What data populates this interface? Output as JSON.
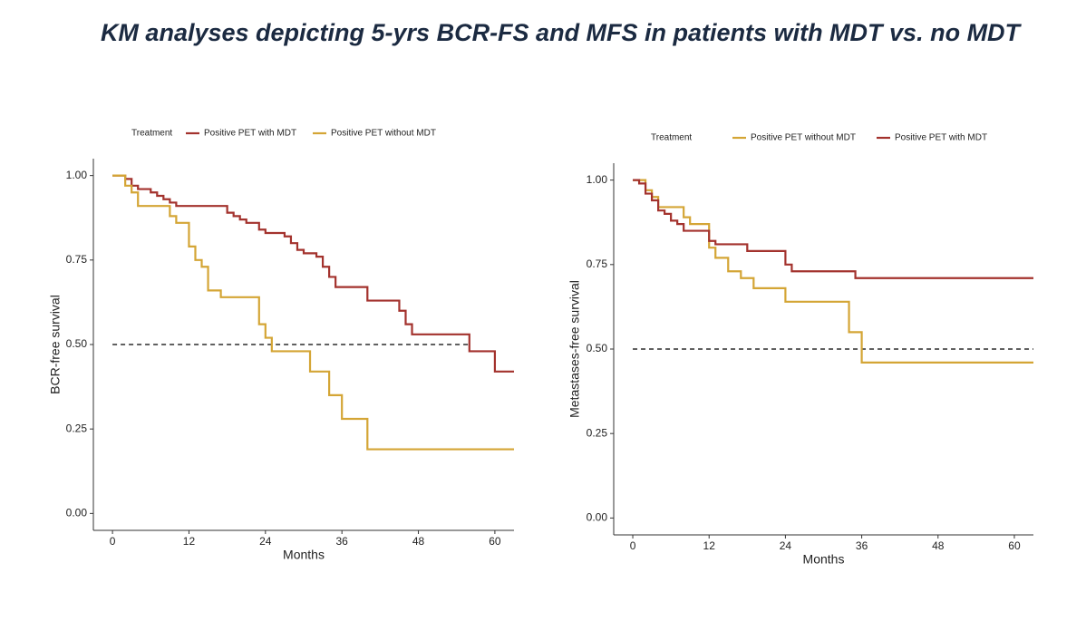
{
  "title": "KM analyses depicting 5-yrs BCR-FS and MFS in patients with MDT vs. no MDT",
  "chart_data": [
    {
      "type": "step",
      "x_label": "Months",
      "y_label": "BCR-free survival",
      "legend_title": "Treatment",
      "xlim": [
        -3,
        63
      ],
      "ylim": [
        -0.05,
        1.05
      ],
      "xticks": [
        0,
        12,
        24,
        36,
        48,
        60
      ],
      "yticks": [
        {
          "value": 0,
          "label": "0.00"
        },
        {
          "value": 0.25,
          "label": "0.25"
        },
        {
          "value": 0.5,
          "label": "0.50"
        },
        {
          "value": 0.75,
          "label": "0.75"
        },
        {
          "value": 1,
          "label": "1.00"
        }
      ],
      "reference_line": {
        "y": 0.5,
        "x": [
          0,
          56
        ]
      },
      "series": [
        {
          "name": "Positive PET with MDT",
          "color": "#a3322d",
          "x": [
            0,
            2,
            3,
            4,
            6,
            7,
            8,
            9,
            10,
            18,
            19,
            20,
            21,
            23,
            24,
            27,
            28,
            29,
            30,
            32,
            33,
            34,
            35,
            40,
            45,
            46,
            47,
            56,
            60,
            63
          ],
          "values": [
            1.0,
            0.99,
            0.97,
            0.96,
            0.95,
            0.94,
            0.93,
            0.92,
            0.91,
            0.89,
            0.88,
            0.87,
            0.86,
            0.84,
            0.83,
            0.82,
            0.8,
            0.78,
            0.77,
            0.76,
            0.73,
            0.7,
            0.67,
            0.63,
            0.6,
            0.56,
            0.53,
            0.48,
            0.42,
            0.42
          ]
        },
        {
          "name": "Positive PET without MDT",
          "color": "#d4a535",
          "x": [
            0,
            2,
            3,
            4,
            9,
            10,
            12,
            13,
            14,
            15,
            17,
            23,
            24,
            25,
            31,
            34,
            36,
            40,
            63
          ],
          "values": [
            1.0,
            0.97,
            0.95,
            0.91,
            0.88,
            0.86,
            0.79,
            0.75,
            0.73,
            0.66,
            0.64,
            0.56,
            0.52,
            0.48,
            0.42,
            0.35,
            0.28,
            0.19,
            0.19
          ]
        }
      ]
    },
    {
      "type": "step",
      "x_label": "Months",
      "y_label": "Metastases-free survival",
      "legend_title": "Treatment",
      "xlim": [
        -3,
        63
      ],
      "ylim": [
        -0.05,
        1.05
      ],
      "xticks": [
        0,
        12,
        24,
        36,
        48,
        60
      ],
      "yticks": [
        {
          "value": 0,
          "label": "0.00"
        },
        {
          "value": 0.25,
          "label": "0.25"
        },
        {
          "value": 0.5,
          "label": "0.50"
        },
        {
          "value": 0.75,
          "label": "0.75"
        },
        {
          "value": 1,
          "label": "1.00"
        }
      ],
      "reference_line": {
        "y": 0.5,
        "x": [
          0,
          63
        ]
      },
      "series": [
        {
          "name": "Positive PET without MDT",
          "color": "#d4a535",
          "x": [
            0,
            2,
            3,
            4,
            8,
            9,
            12,
            13,
            15,
            17,
            19,
            24,
            34,
            36,
            63
          ],
          "values": [
            1.0,
            0.97,
            0.95,
            0.92,
            0.89,
            0.87,
            0.8,
            0.77,
            0.73,
            0.71,
            0.68,
            0.64,
            0.55,
            0.46,
            0.46
          ]
        },
        {
          "name": "Positive PET with MDT",
          "color": "#a3322d",
          "x": [
            0,
            1,
            2,
            3,
            4,
            5,
            6,
            7,
            8,
            12,
            13,
            18,
            24,
            25,
            35,
            63
          ],
          "values": [
            1.0,
            0.99,
            0.96,
            0.94,
            0.91,
            0.9,
            0.88,
            0.87,
            0.85,
            0.82,
            0.81,
            0.79,
            0.75,
            0.73,
            0.71,
            0.71
          ]
        }
      ]
    }
  ]
}
